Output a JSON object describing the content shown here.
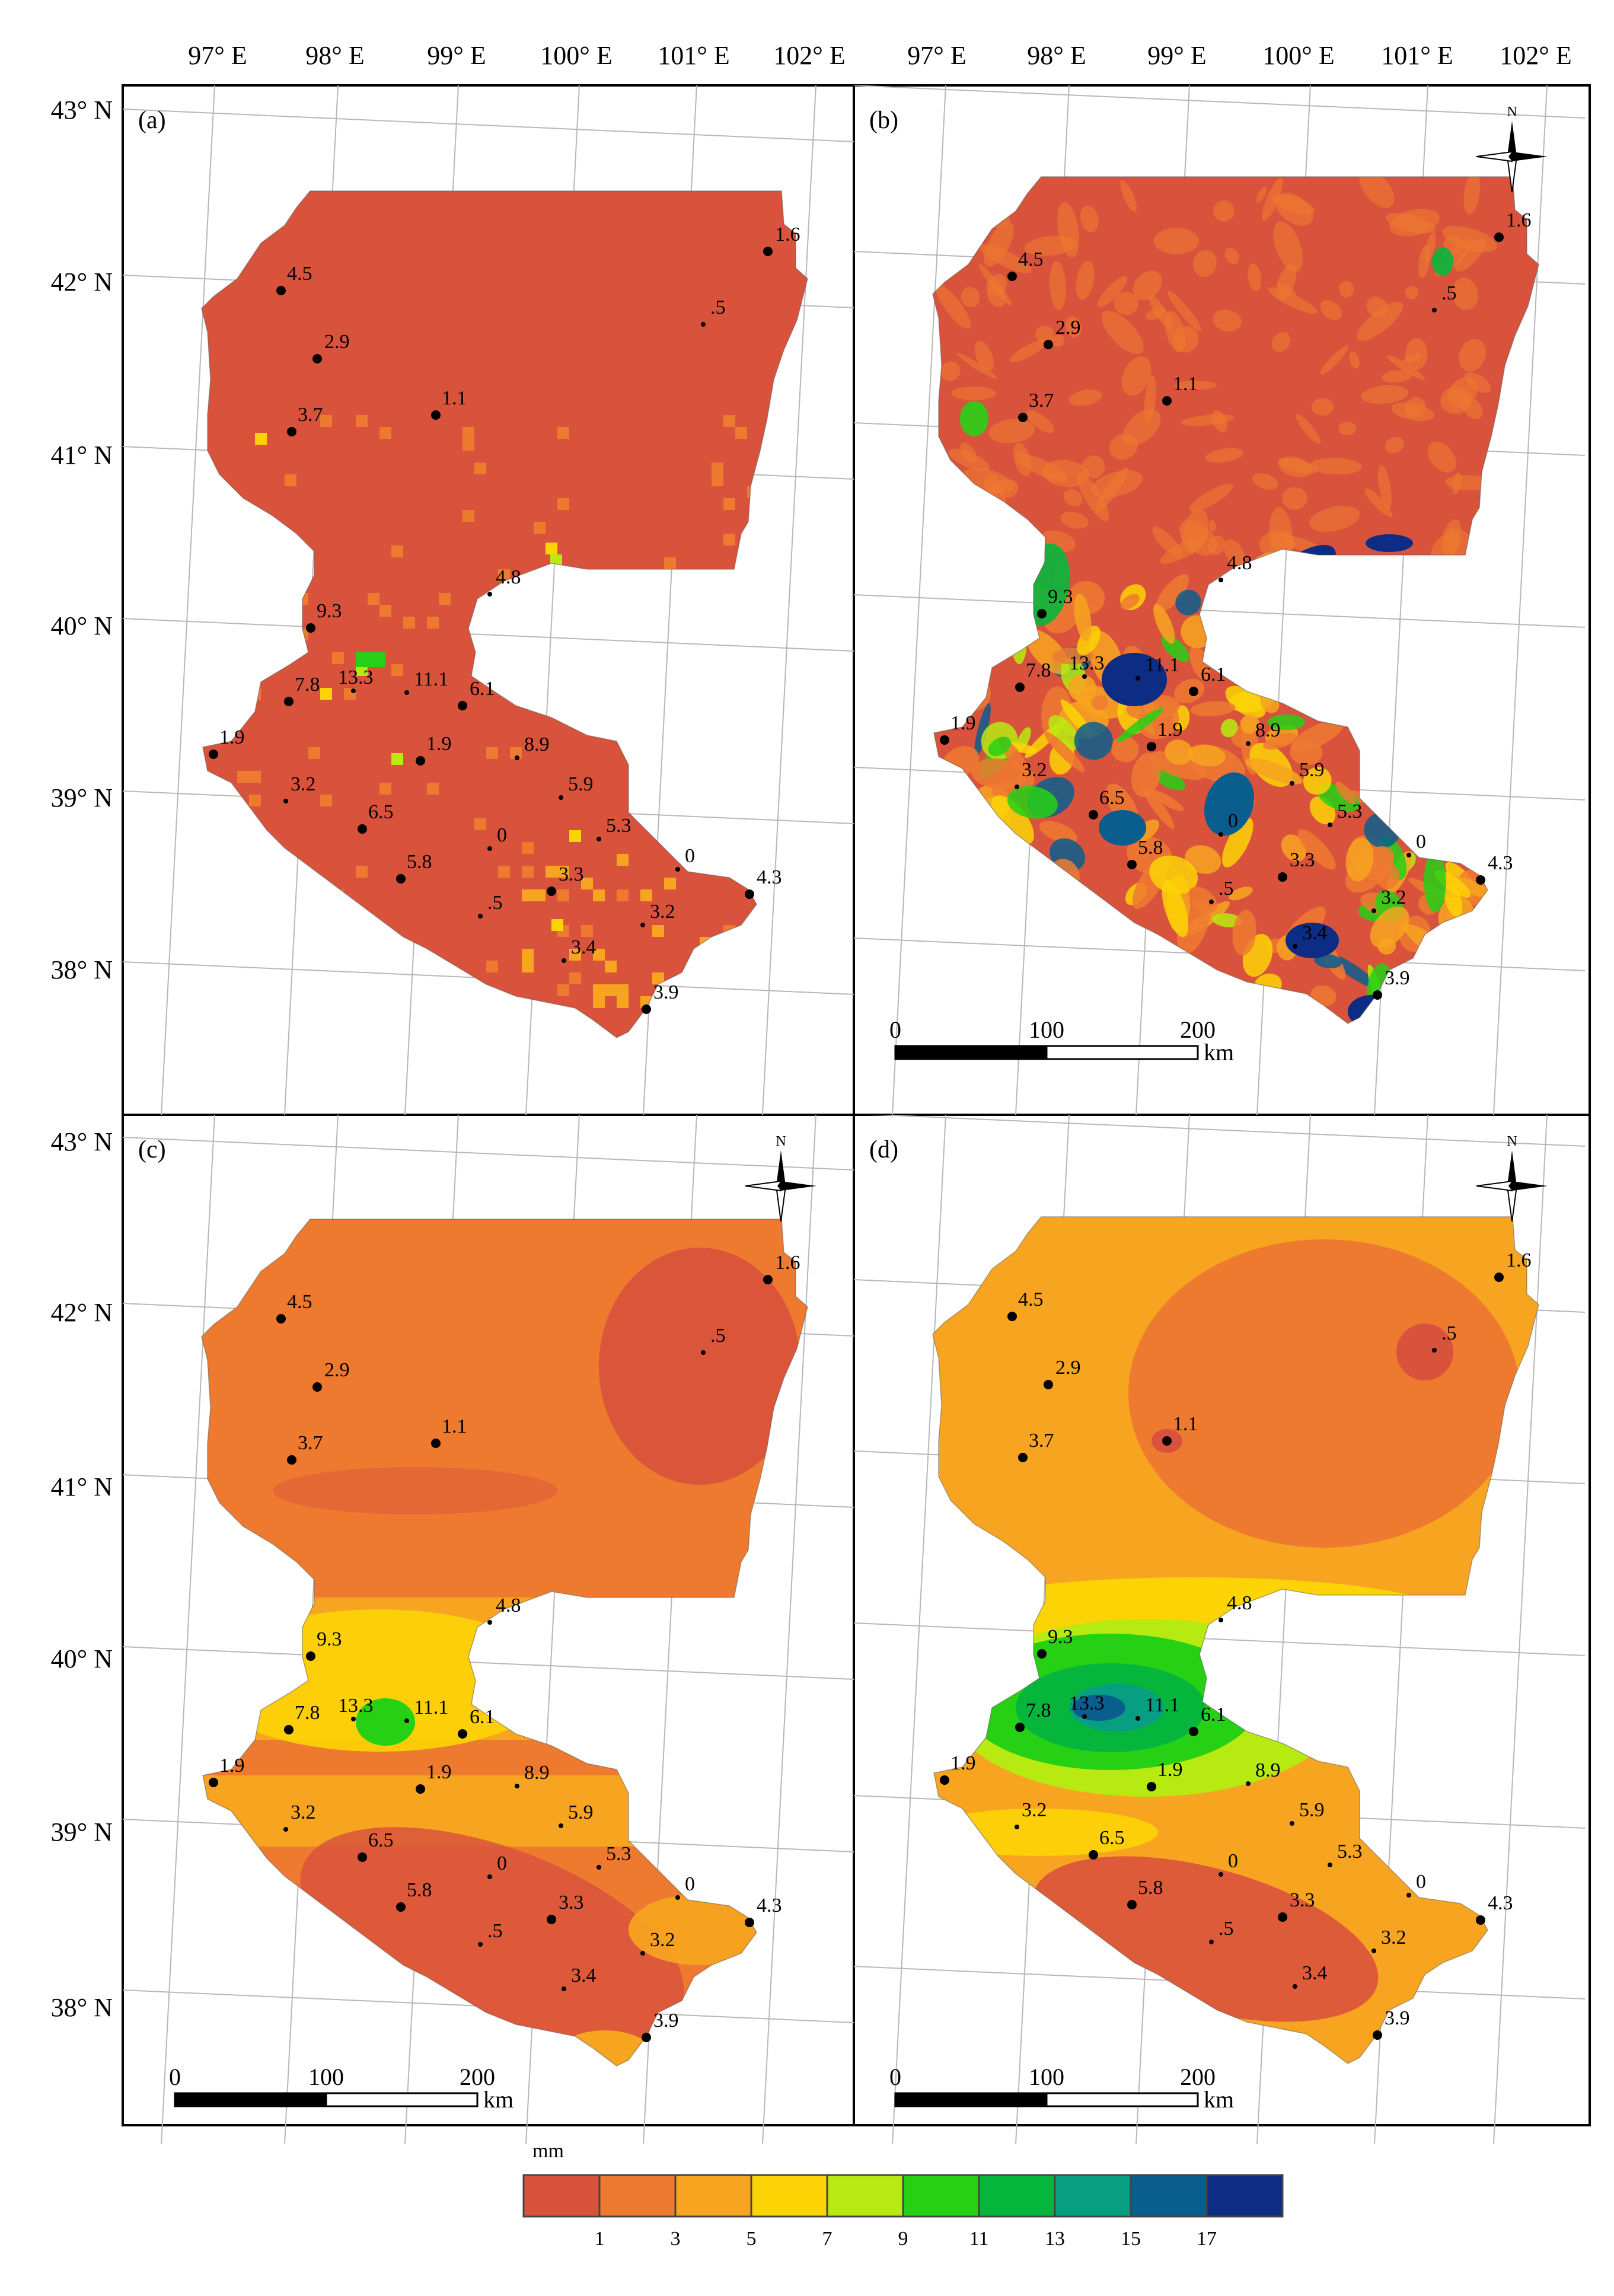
{
  "figure": {
    "lon_labels": [
      "97° E",
      "98° E",
      "99° E",
      "100° E",
      "101° E",
      "102° E"
    ],
    "lat_labels": [
      "43° N",
      "42° N",
      "41° N",
      "40° N",
      "39° N",
      "38° N"
    ]
  },
  "panels": [
    {
      "id": "a",
      "label": "(a)",
      "style": "pixel",
      "north_arrow": false,
      "scale_bar": false
    },
    {
      "id": "b",
      "label": "(b)",
      "style": "satellite",
      "north_arrow": true,
      "scale_bar": true
    },
    {
      "id": "c",
      "label": "(c)",
      "style": "smooth-low",
      "north_arrow": true,
      "scale_bar": true
    },
    {
      "id": "d",
      "label": "(d)",
      "style": "smooth-high",
      "north_arrow": true,
      "scale_bar": true
    }
  ],
  "north_arrow_label": "N",
  "scale_bar": {
    "ticks": [
      "0",
      "100",
      "200"
    ],
    "unit": "km"
  },
  "stations": [
    {
      "label": "1.6",
      "big": true
    },
    {
      "label": "4.5",
      "big": true
    },
    {
      "label": ".5",
      "big": false
    },
    {
      "label": "2.9",
      "big": true
    },
    {
      "label": "1.1",
      "big": true
    },
    {
      "label": "3.7",
      "big": true
    },
    {
      "label": "4.8",
      "big": false
    },
    {
      "label": "9.3",
      "big": true
    },
    {
      "label": "13.3",
      "big": false
    },
    {
      "label": "11.1",
      "big": false
    },
    {
      "label": "7.8",
      "big": true
    },
    {
      "label": "6.1",
      "big": true
    },
    {
      "label": "1.9",
      "big": true
    },
    {
      "label": "1.9",
      "big": true
    },
    {
      "label": "8.9",
      "big": false
    },
    {
      "label": "3.2",
      "big": false
    },
    {
      "label": "5.9",
      "big": false
    },
    {
      "label": "6.5",
      "big": true
    },
    {
      "label": "5.3",
      "big": false
    },
    {
      "label": "0",
      "big": false
    },
    {
      "label": "0",
      "big": false
    },
    {
      "label": "5.8",
      "big": true
    },
    {
      "label": "3.3",
      "big": true
    },
    {
      "label": "4.3",
      "big": true
    },
    {
      "label": ".5",
      "big": false
    },
    {
      "label": "3.2",
      "big": false
    },
    {
      "label": "3.4",
      "big": false
    },
    {
      "label": "3.9",
      "big": true
    }
  ],
  "legend": {
    "unit": "mm",
    "colors": [
      "#d9533c",
      "#ee7a30",
      "#f7a520",
      "#fcd406",
      "#b6ea10",
      "#26d015",
      "#06b63c",
      "#079e82",
      "#0a5e8e",
      "#0d2c84"
    ],
    "ticks": [
      "1",
      "3",
      "5",
      "7",
      "9",
      "11",
      "13",
      "15",
      "17"
    ]
  }
}
